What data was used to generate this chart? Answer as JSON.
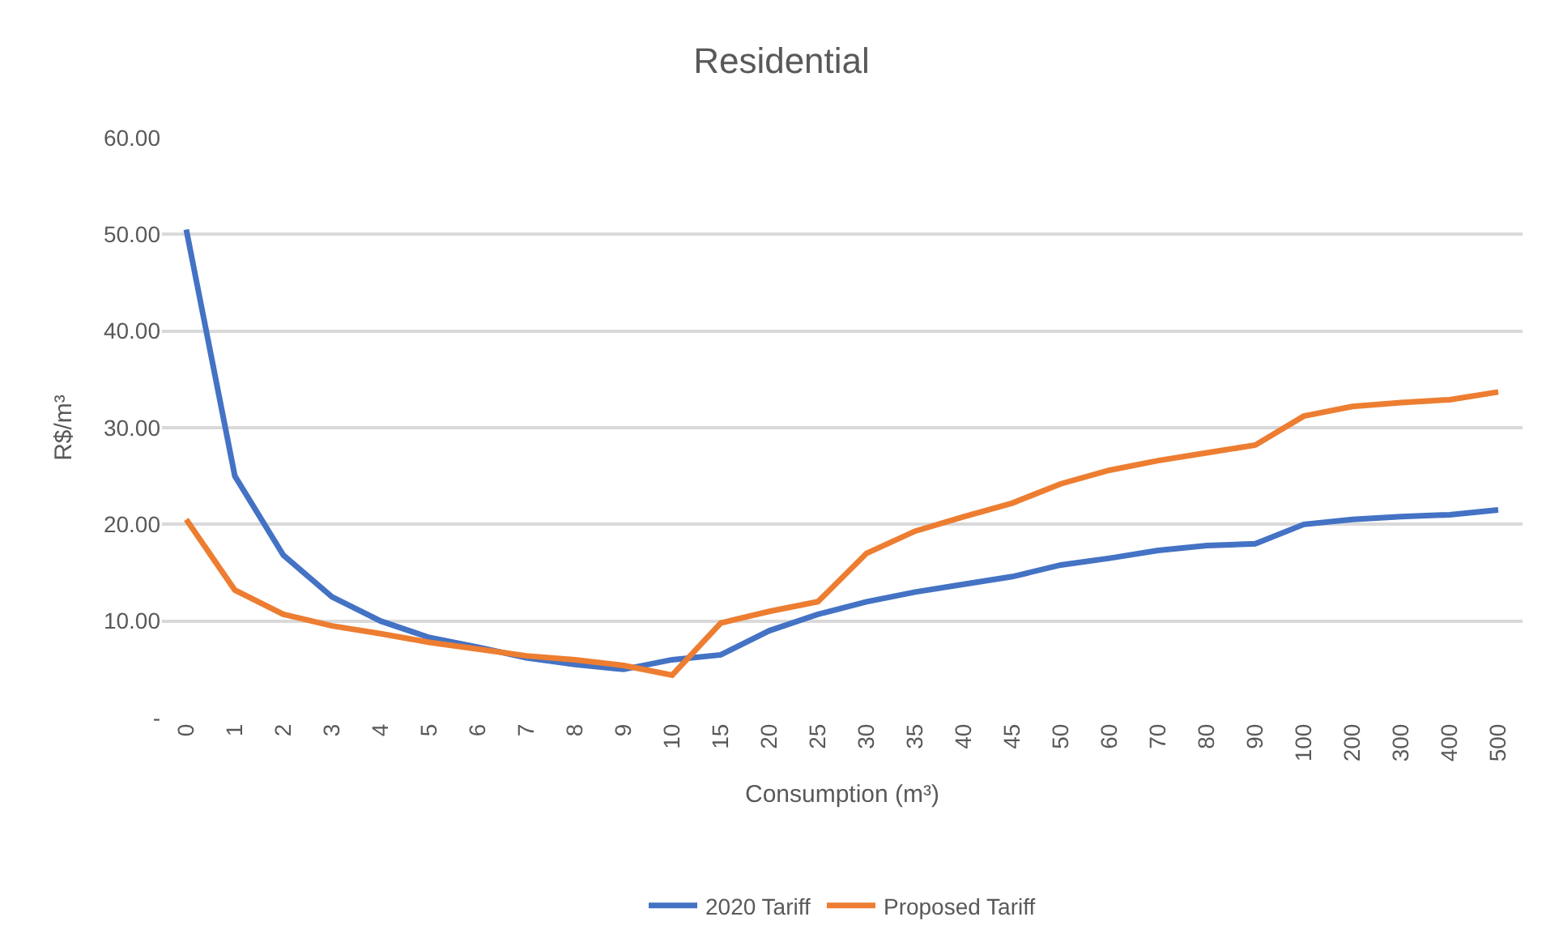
{
  "chart_data": {
    "type": "line",
    "title": "Residential",
    "xlabel": "Consumption (m³)",
    "ylabel": "R$/m³",
    "categories": [
      "0",
      "1",
      "2",
      "3",
      "4",
      "5",
      "6",
      "7",
      "8",
      "9",
      "10",
      "15",
      "20",
      "25",
      "30",
      "35",
      "40",
      "45",
      "50",
      "60",
      "70",
      "80",
      "90",
      "100",
      "200",
      "300",
      "400",
      "500"
    ],
    "series": [
      {
        "name": "2020 Tariff",
        "color": "#4472c4",
        "values": [
          50.5,
          25,
          16.8,
          12.5,
          10,
          8.3,
          7.3,
          6.2,
          5.5,
          5.0,
          6.0,
          6.5,
          9,
          10.7,
          12,
          13,
          13.8,
          14.6,
          15.8,
          16.5,
          17.3,
          17.8,
          18,
          20,
          20.5,
          20.8,
          21,
          21.5
        ]
      },
      {
        "name": "Proposed Tariff",
        "color": "#ed7d31",
        "values": [
          20.5,
          13.2,
          10.7,
          9.5,
          8.7,
          7.8,
          7.1,
          6.4,
          6.0,
          5.4,
          4.4,
          9.8,
          11,
          12,
          17,
          19.3,
          20.8,
          22.2,
          24.2,
          25.6,
          26.6,
          27.4,
          28.2,
          31.2,
          32.2,
          32.6,
          32.9,
          33.7
        ]
      }
    ],
    "ylim": [
      0,
      60
    ],
    "yticks": [
      {
        "value": 0,
        "label": "-"
      },
      {
        "value": 10,
        "label": "10.00"
      },
      {
        "value": 20,
        "label": "20.00"
      },
      {
        "value": 30,
        "label": "30.00"
      },
      {
        "value": 40,
        "label": "40.00"
      },
      {
        "value": 50,
        "label": "50.00"
      },
      {
        "value": 60,
        "label": "60.00"
      }
    ],
    "grid": "y",
    "legend": "bottom",
    "marker": "none",
    "line_style": "solid"
  }
}
